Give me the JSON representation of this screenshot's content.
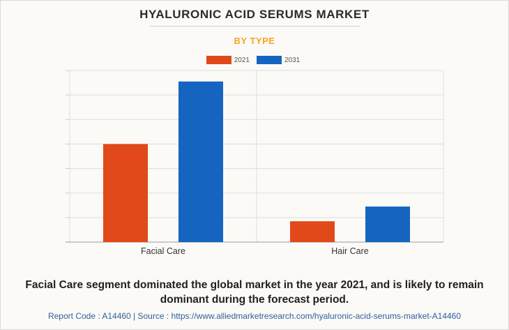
{
  "header": {
    "title": "HYALURONIC ACID SERUMS MARKET",
    "subtitle": "BY TYPE"
  },
  "colors": {
    "series_2021": "#e2491a",
    "series_2031": "#1565c0",
    "subtitle": "#f5a623",
    "grid": "#dddddd"
  },
  "chart_data": {
    "type": "bar",
    "categories": [
      "Facial Care",
      "Hair Care"
    ],
    "series": [
      {
        "name": "2021",
        "values": [
          4.0,
          0.85
        ]
      },
      {
        "name": "2031",
        "values": [
          6.55,
          1.45
        ]
      }
    ],
    "ylim": [
      0,
      7
    ],
    "grid": true,
    "legend_position": "top-center",
    "xlabel": "",
    "ylabel": ""
  },
  "footer": {
    "summary": "Facial Care segment dominated the global market in the year 2021, and is likely to remain dominant during the forecast period.",
    "source": "Report Code : A14460  |  Source : https://www.alliedmarketresearch.com/hyaluronic-acid-serums-market-A14460"
  }
}
